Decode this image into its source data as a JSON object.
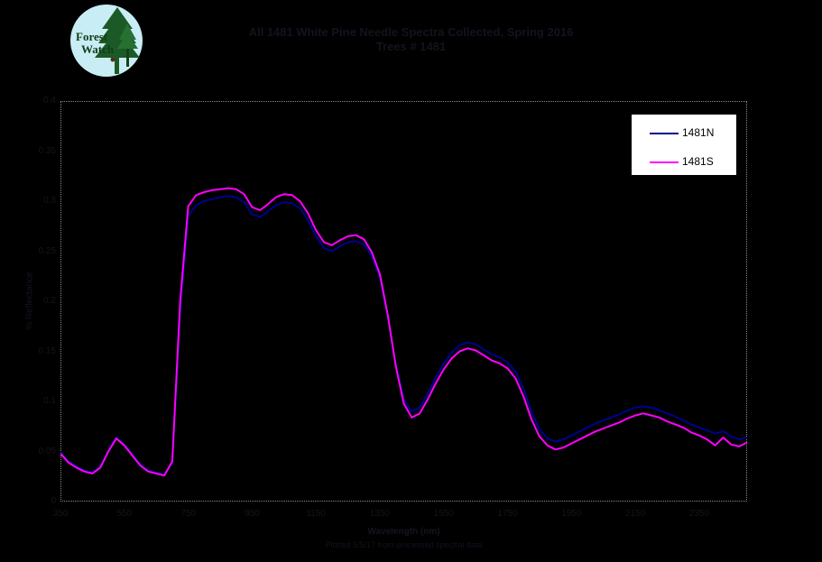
{
  "page": {
    "background": "#000000"
  },
  "logo": {
    "line1": "Forest",
    "line2": "Watch",
    "circle_color": "#c9edf5",
    "tree_color": "#1b5a26",
    "text_color": "#123d18"
  },
  "title": {
    "line1": "All 1481 White Pine Needle Spectra Collected, Spring 2016",
    "line2": "Trees # 1481"
  },
  "legend": {
    "items": [
      {
        "label": "1481N",
        "color": "#000090"
      },
      {
        "label": "1481S",
        "color": "#ff00ff"
      }
    ]
  },
  "axes": {
    "x_title": "Wavelength (nm)",
    "y_title": "% Reflectance",
    "footer": "Plotted 5/5/17 from processed spectral data"
  },
  "chart_data": {
    "type": "line",
    "title": "All 1481 White Pine Needle Spectra Collected, Spring 2016",
    "xlabel": "Wavelength (nm)",
    "ylabel": "% Reflectance",
    "xlim": [
      350,
      2500
    ],
    "ylim": [
      0,
      0.4
    ],
    "grid": false,
    "legend_position": "upper right",
    "background": "#000000",
    "x_ticks": [
      350,
      550,
      750,
      950,
      1150,
      1350,
      1550,
      1750,
      1950,
      2150,
      2350
    ],
    "y_ticks": [
      0,
      0.05,
      0.1,
      0.15,
      0.2,
      0.25,
      0.3,
      0.35,
      0.4
    ],
    "y_tick_labels": [
      "0",
      "0.05",
      "0.1",
      "0.15",
      "0.2",
      "0.25",
      "0.3",
      "0.35",
      "0.4"
    ],
    "x": [
      350,
      375,
      400,
      425,
      450,
      475,
      500,
      525,
      550,
      575,
      600,
      625,
      650,
      675,
      700,
      725,
      750,
      775,
      800,
      825,
      850,
      875,
      900,
      925,
      950,
      975,
      1000,
      1025,
      1050,
      1075,
      1100,
      1125,
      1150,
      1175,
      1200,
      1225,
      1250,
      1275,
      1300,
      1325,
      1350,
      1375,
      1400,
      1425,
      1450,
      1475,
      1500,
      1525,
      1550,
      1575,
      1600,
      1625,
      1650,
      1675,
      1700,
      1725,
      1750,
      1775,
      1800,
      1825,
      1850,
      1875,
      1900,
      1925,
      1950,
      1975,
      2000,
      2025,
      2050,
      2075,
      2100,
      2125,
      2150,
      2175,
      2200,
      2225,
      2250,
      2275,
      2300,
      2325,
      2350,
      2375,
      2400,
      2425,
      2450,
      2475,
      2500
    ],
    "series": [
      {
        "name": "1481N",
        "color": "#000090",
        "width": 2,
        "values": [
          0.049,
          0.04,
          0.035,
          0.031,
          0.029,
          0.035,
          0.051,
          0.064,
          0.057,
          0.047,
          0.037,
          0.031,
          0.029,
          0.027,
          0.038,
          0.19,
          0.285,
          0.296,
          0.3,
          0.302,
          0.304,
          0.305,
          0.304,
          0.299,
          0.287,
          0.284,
          0.29,
          0.296,
          0.299,
          0.298,
          0.293,
          0.281,
          0.265,
          0.253,
          0.25,
          0.255,
          0.259,
          0.26,
          0.257,
          0.245,
          0.224,
          0.185,
          0.137,
          0.102,
          0.09,
          0.094,
          0.108,
          0.124,
          0.138,
          0.149,
          0.156,
          0.159,
          0.157,
          0.152,
          0.147,
          0.144,
          0.139,
          0.13,
          0.113,
          0.09,
          0.072,
          0.063,
          0.06,
          0.062,
          0.066,
          0.07,
          0.074,
          0.078,
          0.081,
          0.084,
          0.087,
          0.091,
          0.094,
          0.095,
          0.094,
          0.091,
          0.088,
          0.085,
          0.081,
          0.077,
          0.074,
          0.071,
          0.068,
          0.07,
          0.065,
          0.062,
          0.064
        ]
      },
      {
        "name": "1481S",
        "color": "#ff00ff",
        "width": 2,
        "values": [
          0.048,
          0.039,
          0.034,
          0.03,
          0.028,
          0.034,
          0.05,
          0.063,
          0.056,
          0.046,
          0.036,
          0.03,
          0.028,
          0.026,
          0.04,
          0.2,
          0.295,
          0.306,
          0.309,
          0.311,
          0.312,
          0.313,
          0.312,
          0.307,
          0.294,
          0.291,
          0.297,
          0.304,
          0.307,
          0.306,
          0.3,
          0.288,
          0.271,
          0.259,
          0.256,
          0.261,
          0.265,
          0.266,
          0.262,
          0.249,
          0.227,
          0.186,
          0.135,
          0.098,
          0.084,
          0.088,
          0.102,
          0.118,
          0.132,
          0.143,
          0.15,
          0.153,
          0.151,
          0.146,
          0.141,
          0.138,
          0.133,
          0.123,
          0.105,
          0.082,
          0.065,
          0.056,
          0.052,
          0.054,
          0.058,
          0.062,
          0.066,
          0.07,
          0.073,
          0.076,
          0.079,
          0.083,
          0.086,
          0.088,
          0.086,
          0.084,
          0.08,
          0.077,
          0.074,
          0.069,
          0.066,
          0.062,
          0.056,
          0.064,
          0.057,
          0.055,
          0.059
        ]
      }
    ]
  }
}
